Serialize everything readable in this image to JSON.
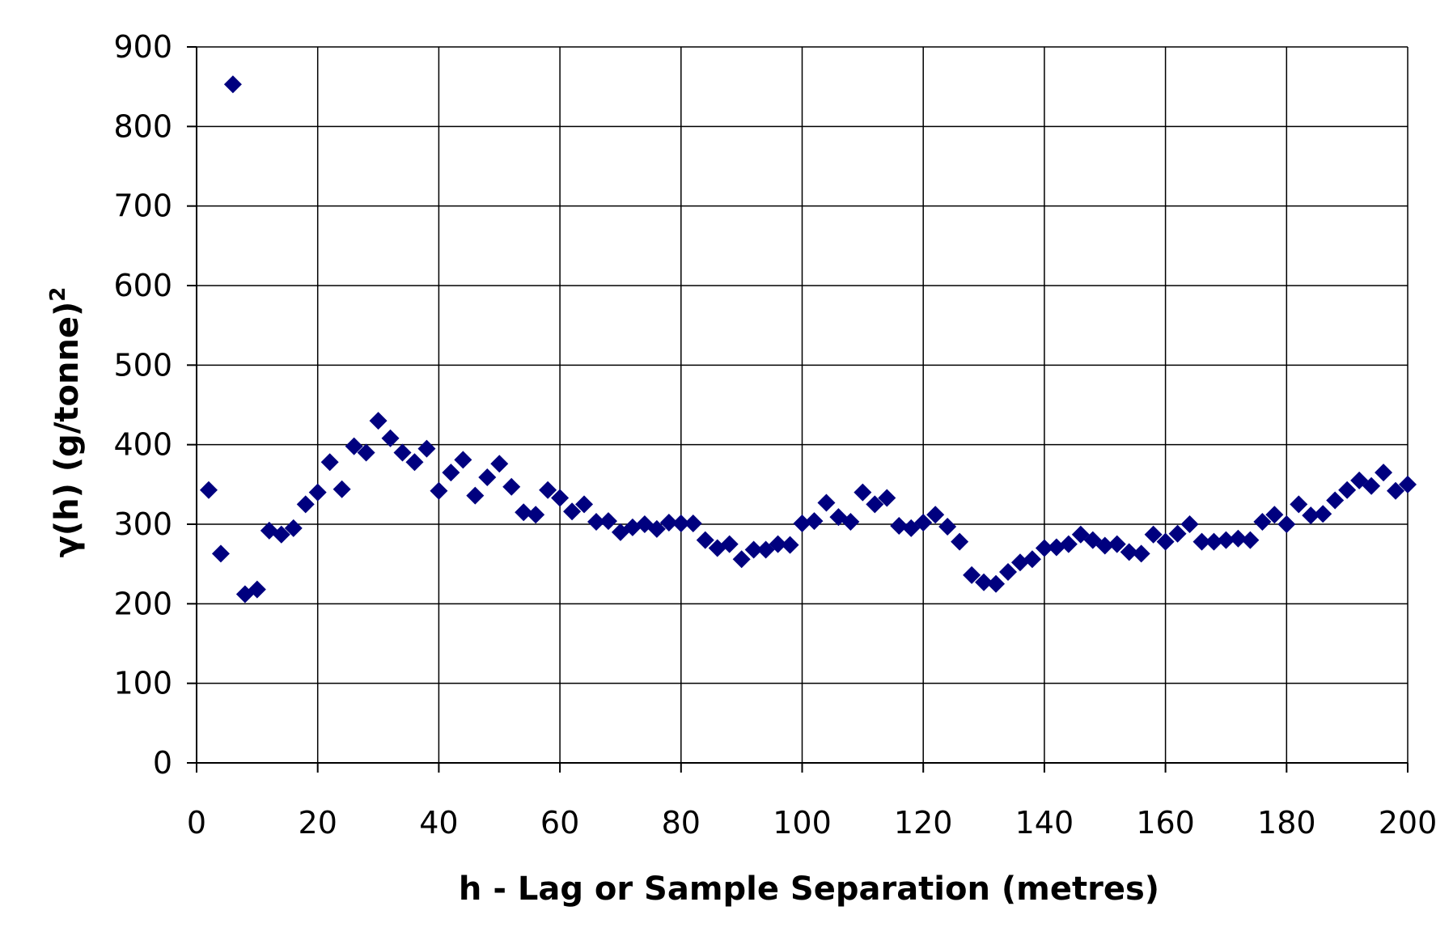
{
  "chart_data": {
    "type": "scatter",
    "title": "",
    "xlabel": "h - Lag or Sample Separation (metres)",
    "ylabel_main": "γ(h) (g/tonne)",
    "ylabel_sup": "2",
    "xlim": [
      0,
      200
    ],
    "ylim": [
      0,
      900
    ],
    "xticks": [
      "0",
      "20",
      "40",
      "60",
      "80",
      "100",
      "120",
      "140",
      "160",
      "180",
      "200"
    ],
    "yticks": [
      "0",
      "100",
      "200",
      "300",
      "400",
      "500",
      "600",
      "700",
      "800",
      "900"
    ],
    "grid": true,
    "legend": "none",
    "marker": "diamond",
    "color": "#00007F",
    "x": [
      2,
      4,
      6,
      8,
      10,
      12,
      14,
      16,
      18,
      20,
      22,
      24,
      26,
      28,
      30,
      32,
      34,
      36,
      38,
      40,
      42,
      44,
      46,
      48,
      50,
      52,
      54,
      56,
      58,
      60,
      62,
      64,
      66,
      68,
      70,
      72,
      74,
      76,
      78,
      80,
      82,
      84,
      86,
      88,
      90,
      92,
      94,
      96,
      98,
      100,
      102,
      104,
      106,
      108,
      110,
      112,
      114,
      116,
      118,
      120,
      122,
      124,
      126,
      128,
      130,
      132,
      134,
      136,
      138,
      140,
      142,
      144,
      146,
      148,
      150,
      152,
      154,
      156,
      158,
      160,
      162,
      164,
      166,
      168,
      170,
      172,
      174,
      176,
      178,
      180,
      182,
      184,
      186,
      188,
      190,
      192,
      194,
      196,
      198,
      200
    ],
    "y": [
      343,
      263,
      853,
      212,
      218,
      292,
      287,
      295,
      325,
      340,
      378,
      344,
      398,
      390,
      430,
      408,
      390,
      378,
      395,
      342,
      365,
      381,
      336,
      359,
      376,
      347,
      315,
      312,
      343,
      333,
      316,
      325,
      303,
      304,
      290,
      296,
      300,
      294,
      302,
      301,
      301,
      280,
      270,
      275,
      256,
      268,
      268,
      275,
      274,
      301,
      304,
      327,
      309,
      303,
      340,
      325,
      333,
      298,
      295,
      302,
      312,
      297,
      278,
      236,
      227,
      225,
      240,
      252,
      256,
      270,
      271,
      275,
      287,
      280,
      273,
      275,
      265,
      263,
      287,
      278,
      288,
      300,
      278,
      278,
      280,
      282,
      280,
      303,
      312,
      300,
      325,
      311,
      313,
      330,
      343,
      355,
      348,
      365,
      342,
      350
    ]
  }
}
